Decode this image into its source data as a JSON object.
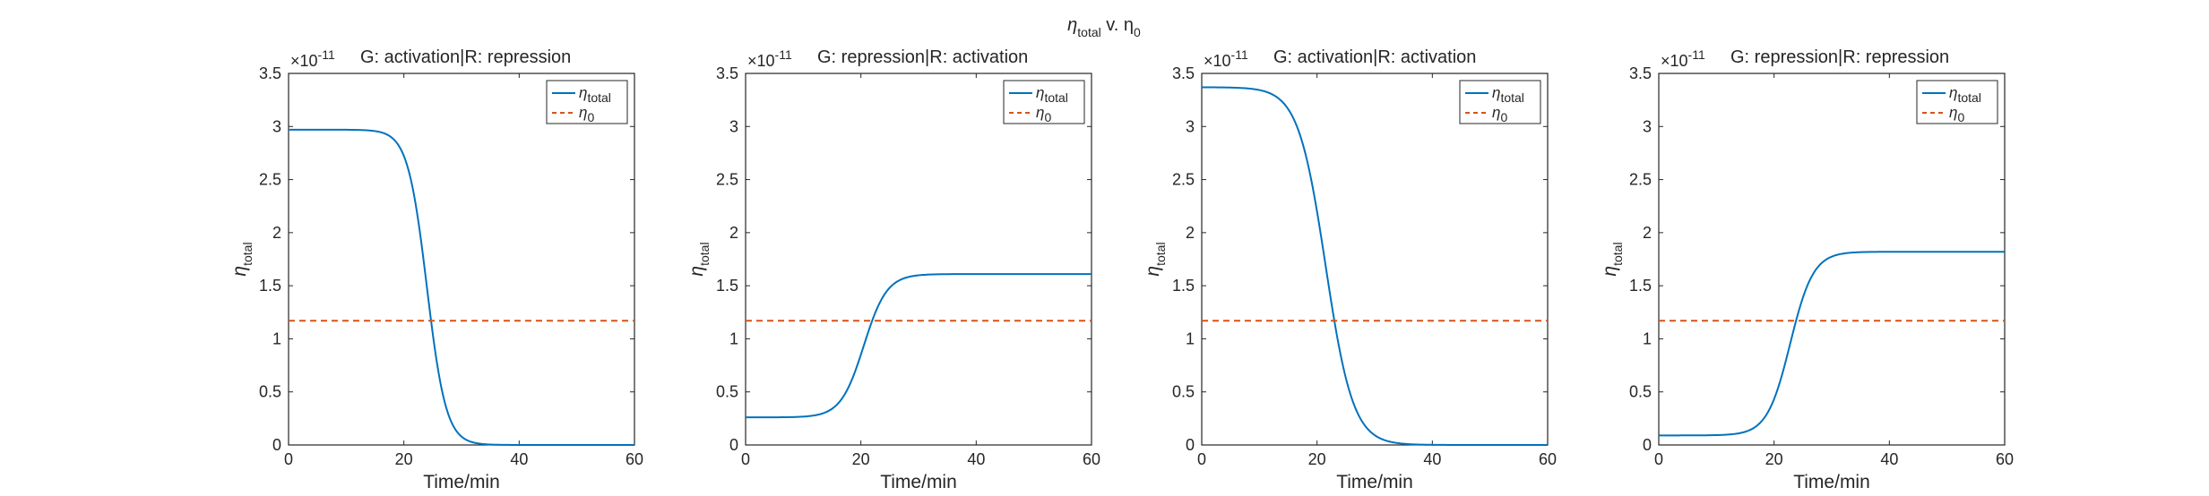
{
  "figure": {
    "title_main": "η",
    "title_sub": "total",
    "title_mid": " v. η",
    "title_sub2": "0"
  },
  "chart_data": [
    {
      "type": "line",
      "title": "G: activation|R: repression",
      "xlabel": "Time/min",
      "ylabel": "η_total",
      "exponent_label": "×10",
      "exponent_power": "-11",
      "xlim": [
        0,
        60
      ],
      "ylim": [
        0,
        3.5
      ],
      "xticks": [
        0,
        20,
        40,
        60
      ],
      "yticks": [
        0,
        0.5,
        1,
        1.5,
        2,
        2.5,
        3,
        3.5
      ],
      "legend_position": "top-right",
      "series": [
        {
          "name": "η_total",
          "legend_main": "η",
          "legend_sub": "total",
          "color": "#0072BD",
          "style": "solid",
          "curve": {
            "start": 2.97,
            "end": 0.0,
            "midpoint": 24,
            "steepness": 0.6
          }
        },
        {
          "name": "η_0",
          "legend_main": "η",
          "legend_sub": "0",
          "color": "#D95319",
          "style": "dashed",
          "curve": {
            "constant": 1.17
          }
        }
      ]
    },
    {
      "type": "line",
      "title": "G: repression|R: activation",
      "xlabel": "Time/min",
      "ylabel": "η_total",
      "exponent_label": "×10",
      "exponent_power": "-11",
      "xlim": [
        0,
        60
      ],
      "ylim": [
        0,
        3.5
      ],
      "xticks": [
        0,
        20,
        40,
        60
      ],
      "yticks": [
        0,
        0.5,
        1,
        1.5,
        2,
        2.5,
        3,
        3.5
      ],
      "legend_position": "top-right",
      "series": [
        {
          "name": "η_total",
          "legend_main": "η",
          "legend_sub": "total",
          "color": "#0072BD",
          "style": "solid",
          "curve": {
            "start": 0.26,
            "end": 1.61,
            "midpoint": 20.5,
            "steepness": 0.5
          }
        },
        {
          "name": "η_0",
          "legend_main": "η",
          "legend_sub": "0",
          "color": "#D95319",
          "style": "dashed",
          "curve": {
            "constant": 1.17
          }
        }
      ]
    },
    {
      "type": "line",
      "title": "G: activation|R: activation",
      "xlabel": "Time/min",
      "ylabel": "η_total",
      "exponent_label": "×10",
      "exponent_power": "-11",
      "xlim": [
        0,
        60
      ],
      "ylim": [
        0,
        3.5
      ],
      "xticks": [
        0,
        20,
        40,
        60
      ],
      "yticks": [
        0,
        0.5,
        1,
        1.5,
        2,
        2.5,
        3,
        3.5
      ],
      "legend_position": "top-right",
      "series": [
        {
          "name": "η_total",
          "legend_main": "η",
          "legend_sub": "total",
          "color": "#0072BD",
          "style": "solid",
          "curve": {
            "start": 3.37,
            "end": 0.0,
            "midpoint": 21.5,
            "steepness": 0.42
          }
        },
        {
          "name": "η_0",
          "legend_main": "η",
          "legend_sub": "0",
          "color": "#D95319",
          "style": "dashed",
          "curve": {
            "constant": 1.17
          }
        }
      ]
    },
    {
      "type": "line",
      "title": "G: repression|R: repression",
      "xlabel": "Time/min",
      "ylabel": "η_total",
      "exponent_label": "×10",
      "exponent_power": "-11",
      "xlim": [
        0,
        60
      ],
      "ylim": [
        0,
        3.5
      ],
      "xticks": [
        0,
        20,
        40,
        60
      ],
      "yticks": [
        0,
        0.5,
        1,
        1.5,
        2,
        2.5,
        3,
        3.5
      ],
      "legend_position": "top-right",
      "series": [
        {
          "name": "η_total",
          "legend_main": "η",
          "legend_sub": "total",
          "color": "#0072BD",
          "style": "solid",
          "curve": {
            "start": 0.09,
            "end": 1.82,
            "midpoint": 22.8,
            "steepness": 0.5
          }
        },
        {
          "name": "η_0",
          "legend_main": "η",
          "legend_sub": "0",
          "color": "#D95319",
          "style": "dashed",
          "curve": {
            "constant": 1.17
          }
        }
      ]
    }
  ]
}
